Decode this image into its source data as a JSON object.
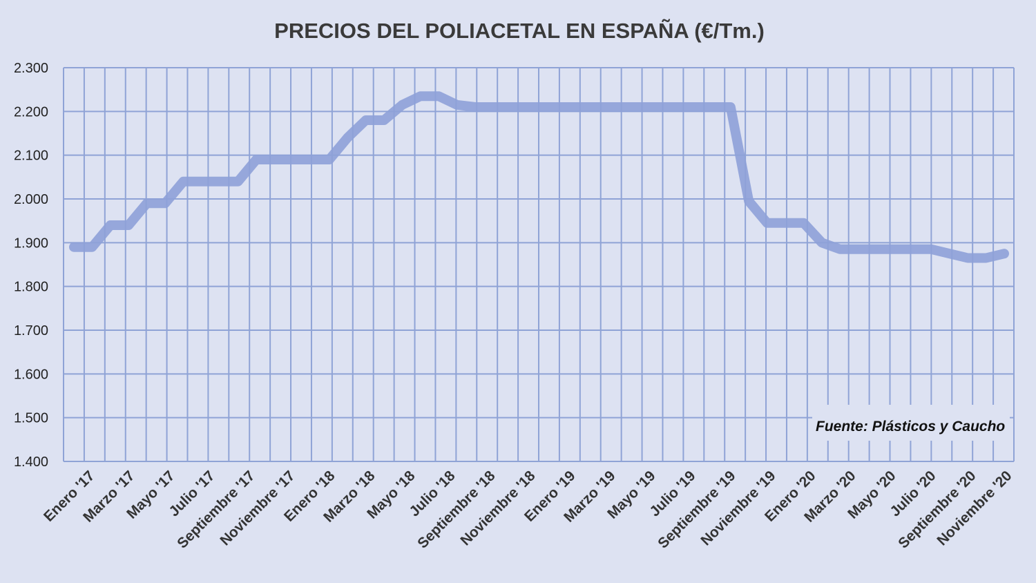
{
  "colors": {
    "background": "#dde2f2",
    "grid": "#8fa3d6",
    "line": "#8ea1d8"
  },
  "chart_data": {
    "type": "line",
    "title": "PRECIOS DEL POLIACETAL  EN ESPAÑA (€/Tm.)",
    "source": "Fuente: Plásticos y Caucho",
    "ylim": [
      1400,
      2300
    ],
    "yticks": [
      2300,
      2200,
      2100,
      2000,
      1900,
      1800,
      1700,
      1600,
      1500,
      1400
    ],
    "ytick_labels": [
      "2.300",
      "2.200",
      "2.100",
      "2.000",
      "1.900",
      "1.800",
      "1.700",
      "1.600",
      "1.500",
      "1.400"
    ],
    "grid": true,
    "xtick_labels": [
      "Enero '17",
      "Marzo '17",
      "Mayo '17",
      "Julio '17",
      "Septiembre '17",
      "Noviembre '17",
      "Enero '18",
      "Marzo '18",
      "Mayo '18",
      "Julio '18",
      "Septiembre '18",
      "Noviembre '18",
      "Enero '19",
      "Marzo '19",
      "Mayo '19",
      "Julio '19",
      "Septiembre '19",
      "Noviembre '19",
      "Enero '20",
      "Marzo '20",
      "Mayo '20",
      "Julio '20",
      "Septiembre '20",
      "Noviembre '20"
    ],
    "series": [
      {
        "values": [
          1890,
          1890,
          1940,
          1940,
          1990,
          1990,
          2040,
          2040,
          2040,
          2040,
          2090,
          2090,
          2090,
          2090,
          2090,
          2140,
          2180,
          2180,
          2215,
          2235,
          2235,
          2215,
          2210,
          2210,
          2210,
          2210,
          2210,
          2210,
          2210,
          2210,
          2210,
          2210,
          2210,
          2210,
          2210,
          2210,
          2210,
          1995,
          1945,
          1945,
          1945,
          1900,
          1885,
          1885,
          1885,
          1885,
          1885,
          1885,
          1875,
          1865,
          1865,
          1875
        ]
      }
    ]
  }
}
